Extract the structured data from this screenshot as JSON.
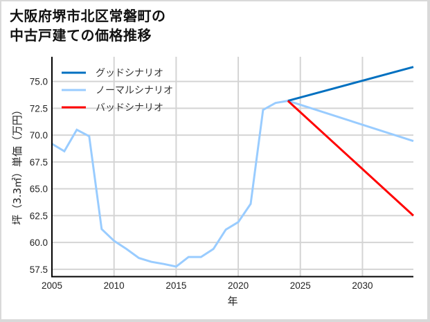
{
  "title_lines": [
    "大阪府堺市北区常磐町の",
    "中古戸建ての価格推移"
  ],
  "chart_data": {
    "type": "line",
    "title": "大阪府堺市北区常磐町の中古戸建ての価格推移",
    "xlabel": "年",
    "ylabel": "坪（3.3㎡）単価（万円）",
    "xlim": [
      2005,
      2034.1
    ],
    "ylim": [
      56.85,
      77.3
    ],
    "xticks": [
      2005,
      2010,
      2015,
      2020,
      2025,
      2030
    ],
    "xtick_labels": [
      "2005",
      "2010",
      "2015",
      "2020",
      "2025",
      "2030"
    ],
    "yticks": [
      57.5,
      60.0,
      62.5,
      65.0,
      67.5,
      70.0,
      72.5,
      75.0
    ],
    "ytick_labels": [
      "57.5",
      "60.0",
      "62.5",
      "65.0",
      "67.5",
      "70.0",
      "72.5",
      "75.0"
    ],
    "grid": true,
    "legend_position": "upper left",
    "series": [
      {
        "name": "グッドシナリオ",
        "color": "#0070c0",
        "x": [
          2024,
          2034.1
        ],
        "y": [
          73.2,
          76.35
        ]
      },
      {
        "name": "ノーマルシナリオ",
        "color": "#99ccff",
        "x": [
          2005,
          2006,
          2007,
          2008,
          2009,
          2010,
          2011,
          2012,
          2013,
          2014,
          2015,
          2016,
          2017,
          2018,
          2019,
          2020,
          2021,
          2022,
          2023,
          2024,
          2034.1
        ],
        "y": [
          69.2,
          68.5,
          70.5,
          69.9,
          61.25,
          60.15,
          59.4,
          58.55,
          58.2,
          58.0,
          57.75,
          58.65,
          58.65,
          59.4,
          61.2,
          61.9,
          63.6,
          72.35,
          73.0,
          73.2,
          69.45
        ]
      },
      {
        "name": "バッドシナリオ",
        "color": "#ff0000",
        "x": [
          2024,
          2034.1
        ],
        "y": [
          73.2,
          62.5
        ]
      }
    ]
  }
}
